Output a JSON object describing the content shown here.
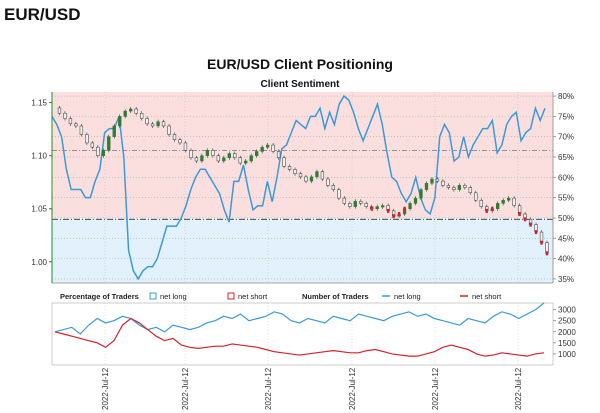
{
  "header": {
    "pair": "EUR/USD"
  },
  "chart_data": {
    "type": "line",
    "title": "EUR/USD Client Positioning",
    "subtitle": "Client Sentiment",
    "colors": {
      "net_long": "#3a9ad9",
      "net_short": "#d8202a",
      "price_up": "#2e7d32",
      "price_down": "#444444",
      "zone_short": "#fbdfdf",
      "zone_long": "#e2f1fb",
      "left_axis": "#1e8c2e"
    },
    "price_axis": {
      "ylim": [
        0.98,
        1.16
      ],
      "ticks": [
        "1.15",
        "1.10",
        "1.05",
        "1.00"
      ]
    },
    "percent_axis": {
      "ylim": [
        34,
        81
      ],
      "ticks": [
        "80%",
        "75%",
        "70%",
        "65%",
        "60%",
        "55%",
        "50%",
        "45%",
        "40%",
        "35%"
      ]
    },
    "reference_lines": {
      "percent_50": 50,
      "price_level": 1.04,
      "band_level": 1.105
    },
    "price_series": [
      1.145,
      1.14,
      1.135,
      1.13,
      1.128,
      1.12,
      1.112,
      1.108,
      1.1,
      1.105,
      1.118,
      1.128,
      1.137,
      1.142,
      1.144,
      1.14,
      1.135,
      1.13,
      1.128,
      1.132,
      1.128,
      1.12,
      1.115,
      1.112,
      1.105,
      1.098,
      1.095,
      1.1,
      1.105,
      1.1,
      1.095,
      1.098,
      1.102,
      1.098,
      1.093,
      1.095,
      1.1,
      1.104,
      1.108,
      1.11,
      1.104,
      1.098,
      1.09,
      1.087,
      1.083,
      1.08,
      1.076,
      1.08,
      1.085,
      1.078,
      1.072,
      1.068,
      1.06,
      1.055,
      1.052,
      1.057,
      1.055,
      1.052,
      1.05,
      1.052,
      1.053,
      1.048,
      1.043,
      1.045,
      1.05,
      1.055,
      1.06,
      1.068,
      1.074,
      1.078,
      1.076,
      1.072,
      1.07,
      1.068,
      1.072,
      1.07,
      1.065,
      1.058,
      1.052,
      1.048,
      1.05,
      1.055,
      1.058,
      1.06,
      1.053,
      1.045,
      1.04,
      1.035,
      1.028,
      1.018,
      1.008
    ],
    "net_long_pct": [
      75,
      73,
      70,
      62,
      57,
      57,
      57,
      55,
      55,
      59,
      62,
      71,
      72,
      72,
      75,
      65,
      42,
      37,
      35,
      37,
      38,
      38,
      40,
      44,
      48,
      48,
      48,
      50,
      53,
      57,
      60,
      62,
      62,
      60,
      58,
      56,
      52,
      49,
      59,
      59,
      63,
      57,
      52,
      53,
      53,
      59,
      54,
      60,
      67,
      68,
      71,
      74,
      73,
      72,
      75,
      75,
      77,
      72,
      76,
      73,
      78,
      80,
      79,
      76,
      72,
      69,
      72,
      75,
      78,
      73,
      66,
      60,
      59,
      56,
      54,
      56,
      60,
      55,
      52,
      51,
      55,
      70,
      73,
      71,
      64,
      65,
      70,
      65,
      68,
      70,
      72,
      72,
      74,
      66,
      68,
      73,
      75,
      76,
      69,
      71,
      72,
      77,
      74,
      77
    ],
    "net_long_traders": [
      2000,
      2100,
      2200,
      1900,
      2300,
      2600,
      2400,
      2500,
      2700,
      2600,
      2300,
      2100,
      2200,
      2000,
      2300,
      2200,
      2100,
      2200,
      2400,
      2500,
      2700,
      2600,
      2800,
      2500,
      2600,
      2700,
      2900,
      2800,
      2500,
      2400,
      2600,
      2500,
      2400,
      2700,
      2600,
      2500,
      2800,
      2700,
      2600,
      2500,
      2700,
      2800,
      2900,
      2700,
      2800,
      2600,
      2500,
      2400,
      2300,
      2600,
      2500,
      2400,
      2700,
      2900,
      2800,
      2600,
      2800,
      3000,
      3300
    ],
    "net_short_traders": [
      2000,
      1900,
      1800,
      1700,
      1600,
      1500,
      1300,
      1600,
      2300,
      2600,
      2400,
      2100,
      1800,
      1600,
      1700,
      1400,
      1300,
      1250,
      1300,
      1350,
      1350,
      1450,
      1400,
      1350,
      1300,
      1200,
      1100,
      1050,
      1000,
      950,
      1000,
      1050,
      1100,
      1150,
      1100,
      1050,
      1050,
      1150,
      1200,
      1100,
      1000,
      950,
      900,
      900,
      1000,
      1100,
      1300,
      1400,
      1300,
      1200,
      1000,
      900,
      950,
      1050,
      1000,
      950,
      900,
      1000,
      1050
    ],
    "tick_labels": {
      "x": [
        "2022-Jul-12",
        "2022-Jul-12",
        "2022-Jul-12",
        "2022-Jul-12",
        "2022-Jul-12",
        "2022-Jul-12"
      ],
      "traders_axis": [
        "3000",
        "2500",
        "2000",
        "1500",
        "1000"
      ]
    },
    "legend": {
      "pct_title": "Percentage of Traders",
      "net_long": "net long",
      "net_short": "net short",
      "num_title": "Number of Traders",
      "num_long": "net long",
      "num_short": "net short"
    }
  }
}
